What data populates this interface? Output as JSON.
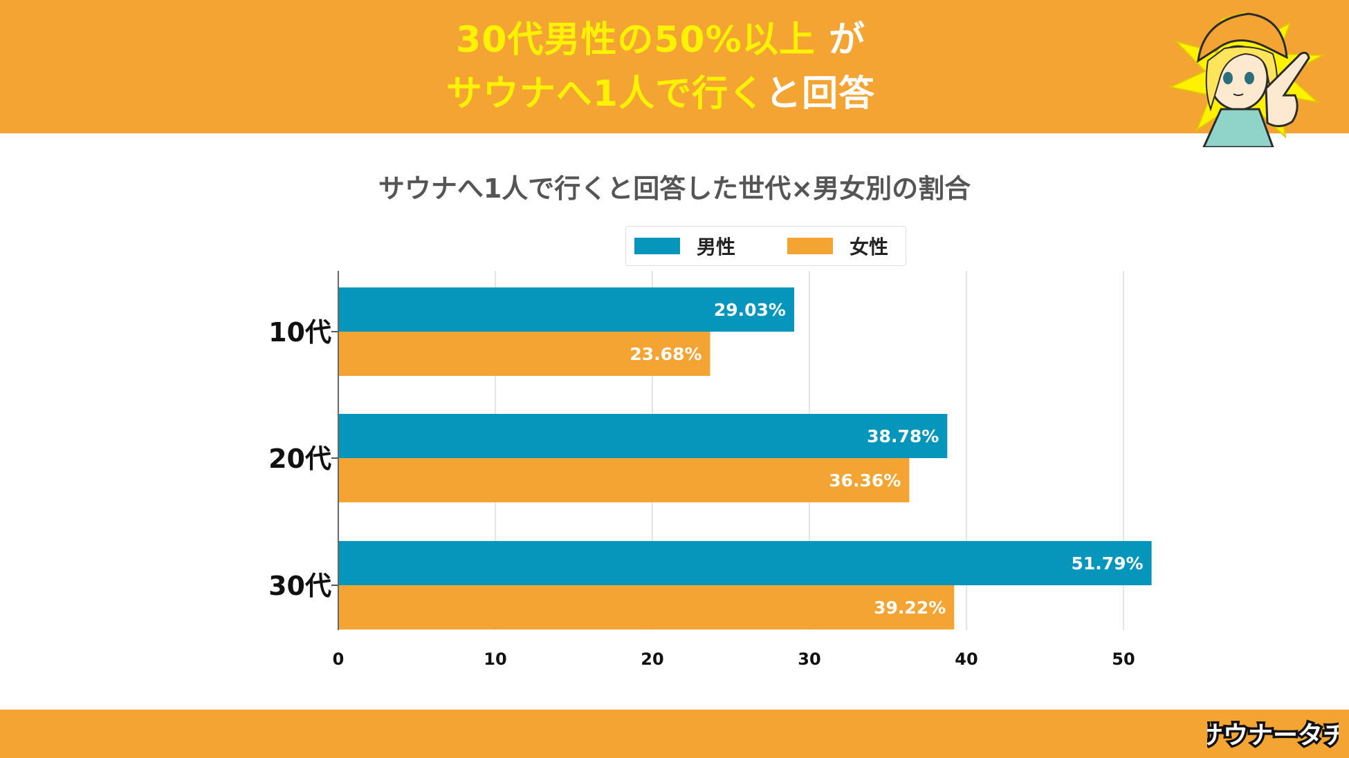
{
  "header": {
    "line1_highlight": "30代男性の50%以上",
    "line1_plain": " が",
    "line2_highlight": "サウナへ1人で行く",
    "line2_plain": "と回答"
  },
  "brand": {
    "logo_text": "サウナータチ"
  },
  "colors": {
    "band": "#f3a433",
    "male": "#0796bb",
    "female": "#f3a433",
    "headline_accent": "#fff200"
  },
  "chart_data": {
    "type": "bar",
    "orientation": "horizontal",
    "title": "サウナへ1人で行くと回答した世代×男女別の割合",
    "categories": [
      "10代",
      "20代",
      "30代"
    ],
    "series": [
      {
        "name": "男性",
        "values": [
          29.03,
          38.78,
          51.79
        ],
        "labels": [
          "29.03%",
          "38.78%",
          "51.79%"
        ]
      },
      {
        "name": "女性",
        "values": [
          23.68,
          36.36,
          39.22
        ],
        "labels": [
          "23.68%",
          "36.36%",
          "39.22%"
        ]
      }
    ],
    "x_ticks": [
      0,
      10,
      20,
      30,
      40,
      50
    ],
    "xlim": [
      0,
      53
    ],
    "grid": true,
    "legend_position": "top-right"
  }
}
